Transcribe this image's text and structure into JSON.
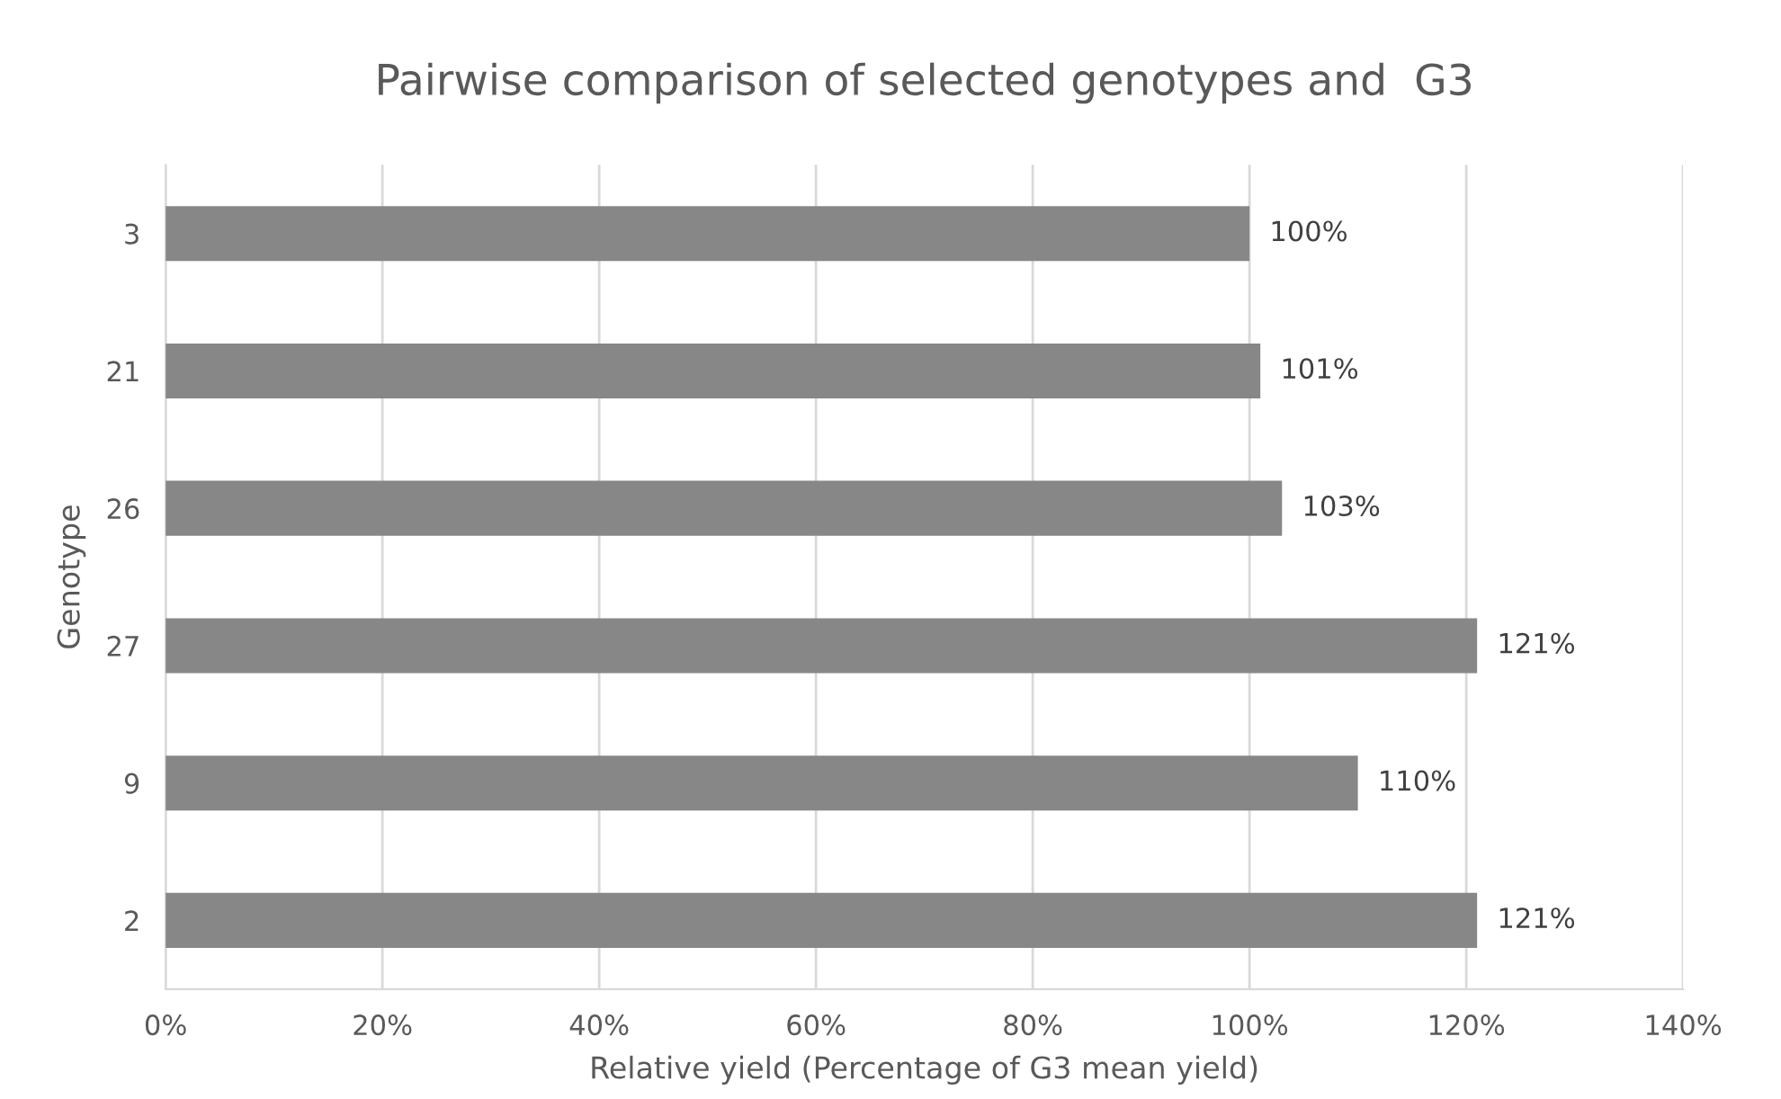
{
  "chart_data": {
    "type": "bar",
    "orientation": "horizontal",
    "title": "Pairwise comparison of selected genotypes and  G3",
    "xlabel": "Relative yield (Percentage of G3 mean yield)",
    "ylabel": "Genotype",
    "categories": [
      "3",
      "21",
      "26",
      "27",
      "9",
      "2"
    ],
    "series": [
      {
        "color": "#878787",
        "values": [
          100,
          101,
          103,
          121,
          110,
          121
        ],
        "value_labels": [
          "100%",
          "101%",
          "103%",
          "121%",
          "110%",
          "121%"
        ]
      }
    ],
    "xlim": [
      0,
      140
    ],
    "xticks": [
      {
        "value": 0,
        "label": "0%"
      },
      {
        "value": 20,
        "label": "20%"
      },
      {
        "value": 40,
        "label": "40%"
      },
      {
        "value": 60,
        "label": "60%"
      },
      {
        "value": 80,
        "label": "80%"
      },
      {
        "value": 100,
        "label": "100%"
      },
      {
        "value": 120,
        "label": "120%"
      },
      {
        "value": 140,
        "label": "140%"
      }
    ],
    "grid": "x",
    "legend": false
  }
}
